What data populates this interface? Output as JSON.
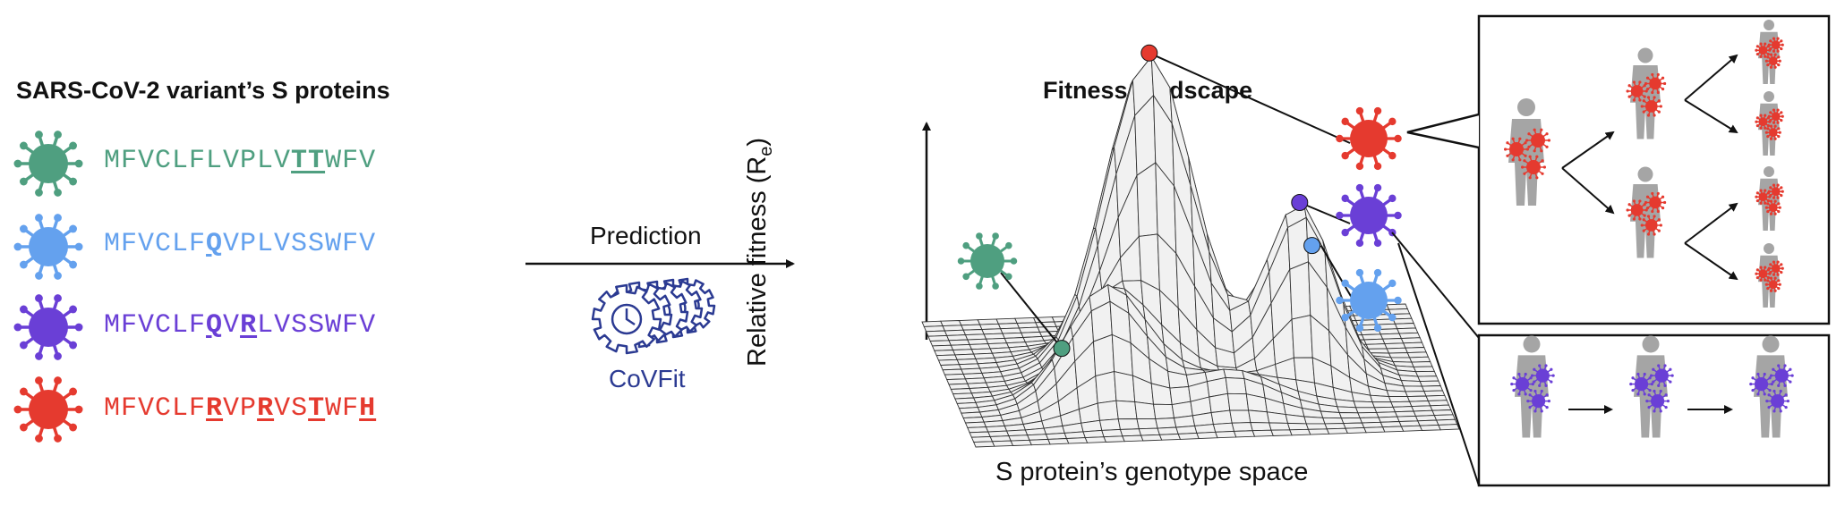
{
  "left_title": "SARS-CoV-2 variant’s S proteins",
  "colors": {
    "green": "#4f9f80",
    "blue": "#64a1ee",
    "purple": "#6a3fd6",
    "red": "#e53a2f",
    "gray": "#a5a5a5",
    "dark": "#222222",
    "covfit": "#2b3a92"
  },
  "variants": [
    {
      "name": "green",
      "segments": [
        {
          "t": "MFVCLFLVPLV",
          "m": false
        },
        {
          "t": "TT",
          "m": true
        },
        {
          "t": "WFV",
          "m": false
        }
      ]
    },
    {
      "name": "blue",
      "segments": [
        {
          "t": "MFVCLF",
          "m": false
        },
        {
          "t": "Q",
          "m": true
        },
        {
          "t": "VPLVSSWFV",
          "m": false
        }
      ]
    },
    {
      "name": "purple",
      "segments": [
        {
          "t": "MFVCLF",
          "m": false
        },
        {
          "t": "Q",
          "m": true
        },
        {
          "t": "V",
          "m": false
        },
        {
          "t": "R",
          "m": true
        },
        {
          "t": "LVSSWFV",
          "m": false
        }
      ]
    },
    {
      "name": "red",
      "segments": [
        {
          "t": "MFVCLF",
          "m": false
        },
        {
          "t": "R",
          "m": true
        },
        {
          "t": "VP",
          "m": false
        },
        {
          "t": "R",
          "m": true
        },
        {
          "t": "VS",
          "m": false
        },
        {
          "t": "T",
          "m": true
        },
        {
          "t": "WF",
          "m": false
        },
        {
          "t": "H",
          "m": true
        }
      ]
    }
  ],
  "prediction_label": "Prediction",
  "model_name": "CoVFit",
  "landscape_title": "Fitness landscape",
  "y_axis_label": "Relative fitness (R",
  "y_axis_subscript": "e",
  "x_axis_label": "S protein’s genotype space",
  "icons": [
    "virus-icon",
    "gear-icon",
    "person-icon",
    "arrow-icon"
  ]
}
